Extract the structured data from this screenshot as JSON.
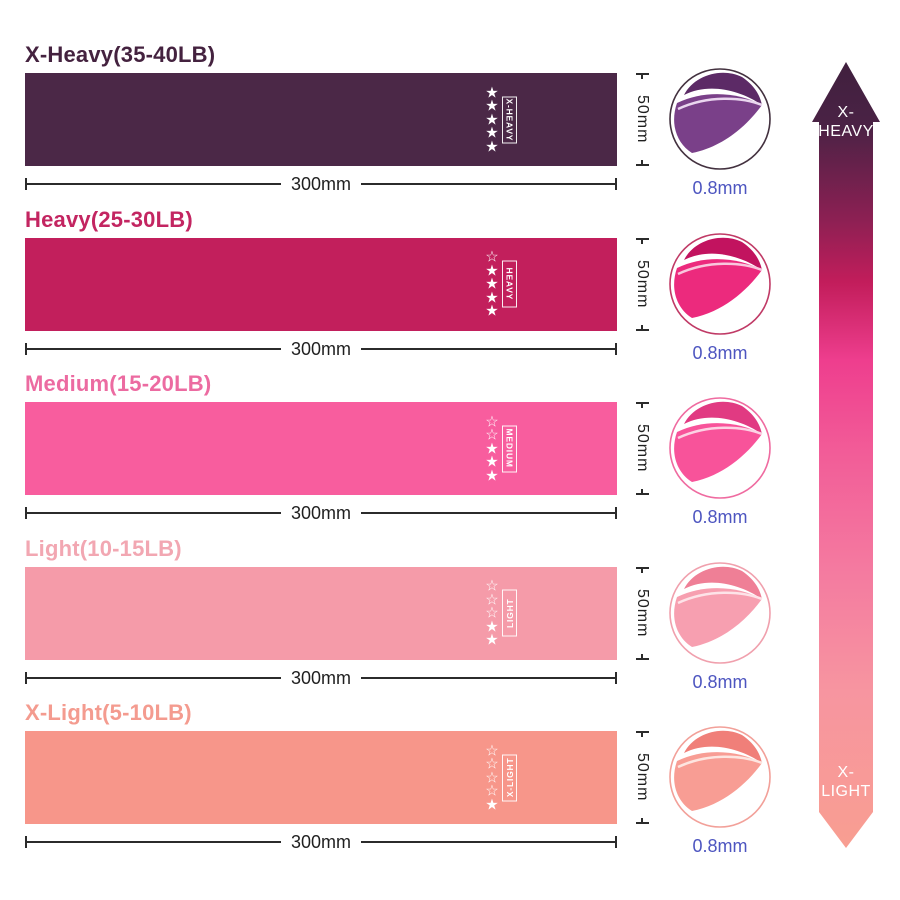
{
  "icons": {
    "star_filled_char": "★",
    "star_outline_char": "☆"
  },
  "dimensions": {
    "line_color": "#2b2b2b",
    "thickness_color": "#4d55c0"
  },
  "bands": [
    {
      "title": "X-Heavy(35-40LB)",
      "tag": "X-HEAVY",
      "stars_filled": 5,
      "stars_total": 5,
      "band_color": "#4b2847",
      "title_color": "#44223f",
      "width_label": "300mm",
      "height_label": "50mm",
      "thickness_label": "0.8mm",
      "fold": {
        "face": "#7a4089",
        "flap": "#5c2a66",
        "highlight": "#ead6ef",
        "ring": "#43313f"
      }
    },
    {
      "title": "Heavy(25-30LB)",
      "tag": "HEAVY",
      "stars_filled": 4,
      "stars_total": 5,
      "band_color": "#c21f5c",
      "title_color": "#c32561",
      "width_label": "300mm",
      "height_label": "50mm",
      "thickness_label": "0.8mm",
      "fold": {
        "face": "#ec2a7d",
        "flap": "#c2135f",
        "highlight": "#f8c7dd",
        "ring": "#c03a66"
      }
    },
    {
      "title": "Medium(15-20LB)",
      "tag": "MEDIUM",
      "stars_filled": 3,
      "stars_total": 5,
      "band_color": "#f85d9e",
      "title_color": "#ec6ba1",
      "width_label": "300mm",
      "height_label": "50mm",
      "thickness_label": "0.8mm",
      "fold": {
        "face": "#f8539a",
        "flap": "#e13a82",
        "highlight": "#fcd3e4",
        "ring": "#ef6ba0"
      }
    },
    {
      "title": "Light(10-15LB)",
      "tag": "LIGHT",
      "stars_filled": 2,
      "stars_total": 5,
      "band_color": "#f59ba9",
      "title_color": "#f2a7b2",
      "width_label": "300mm",
      "height_label": "50mm",
      "thickness_label": "0.8mm",
      "fold": {
        "face": "#f79fb0",
        "flap": "#ef7f96",
        "highlight": "#fde3e8",
        "ring": "#f0a0ad"
      }
    },
    {
      "title": "X-Light(5-10LB)",
      "tag": "X-LIGHT",
      "stars_filled": 1,
      "stars_total": 5,
      "band_color": "#f7968a",
      "title_color": "#f49b8f",
      "width_label": "300mm",
      "height_label": "50mm",
      "thickness_label": "0.8mm",
      "fold": {
        "face": "#f89d94",
        "flap": "#f07f79",
        "highlight": "#fde5e0",
        "ring": "#f2a099"
      }
    }
  ],
  "arrow": {
    "top_line1": "X-",
    "top_line2": "HEAVY",
    "bottom_line1": "X-",
    "bottom_line2": "LIGHT",
    "gradient": [
      "#40203e",
      "#4a2245",
      "#8c2053",
      "#c21d5b",
      "#ee3e8e",
      "#f25d98",
      "#f47ba0",
      "#f795a0",
      "#f89e91"
    ],
    "gradient_offsets": [
      0,
      8,
      20,
      28,
      38,
      50,
      65,
      80,
      100
    ]
  }
}
